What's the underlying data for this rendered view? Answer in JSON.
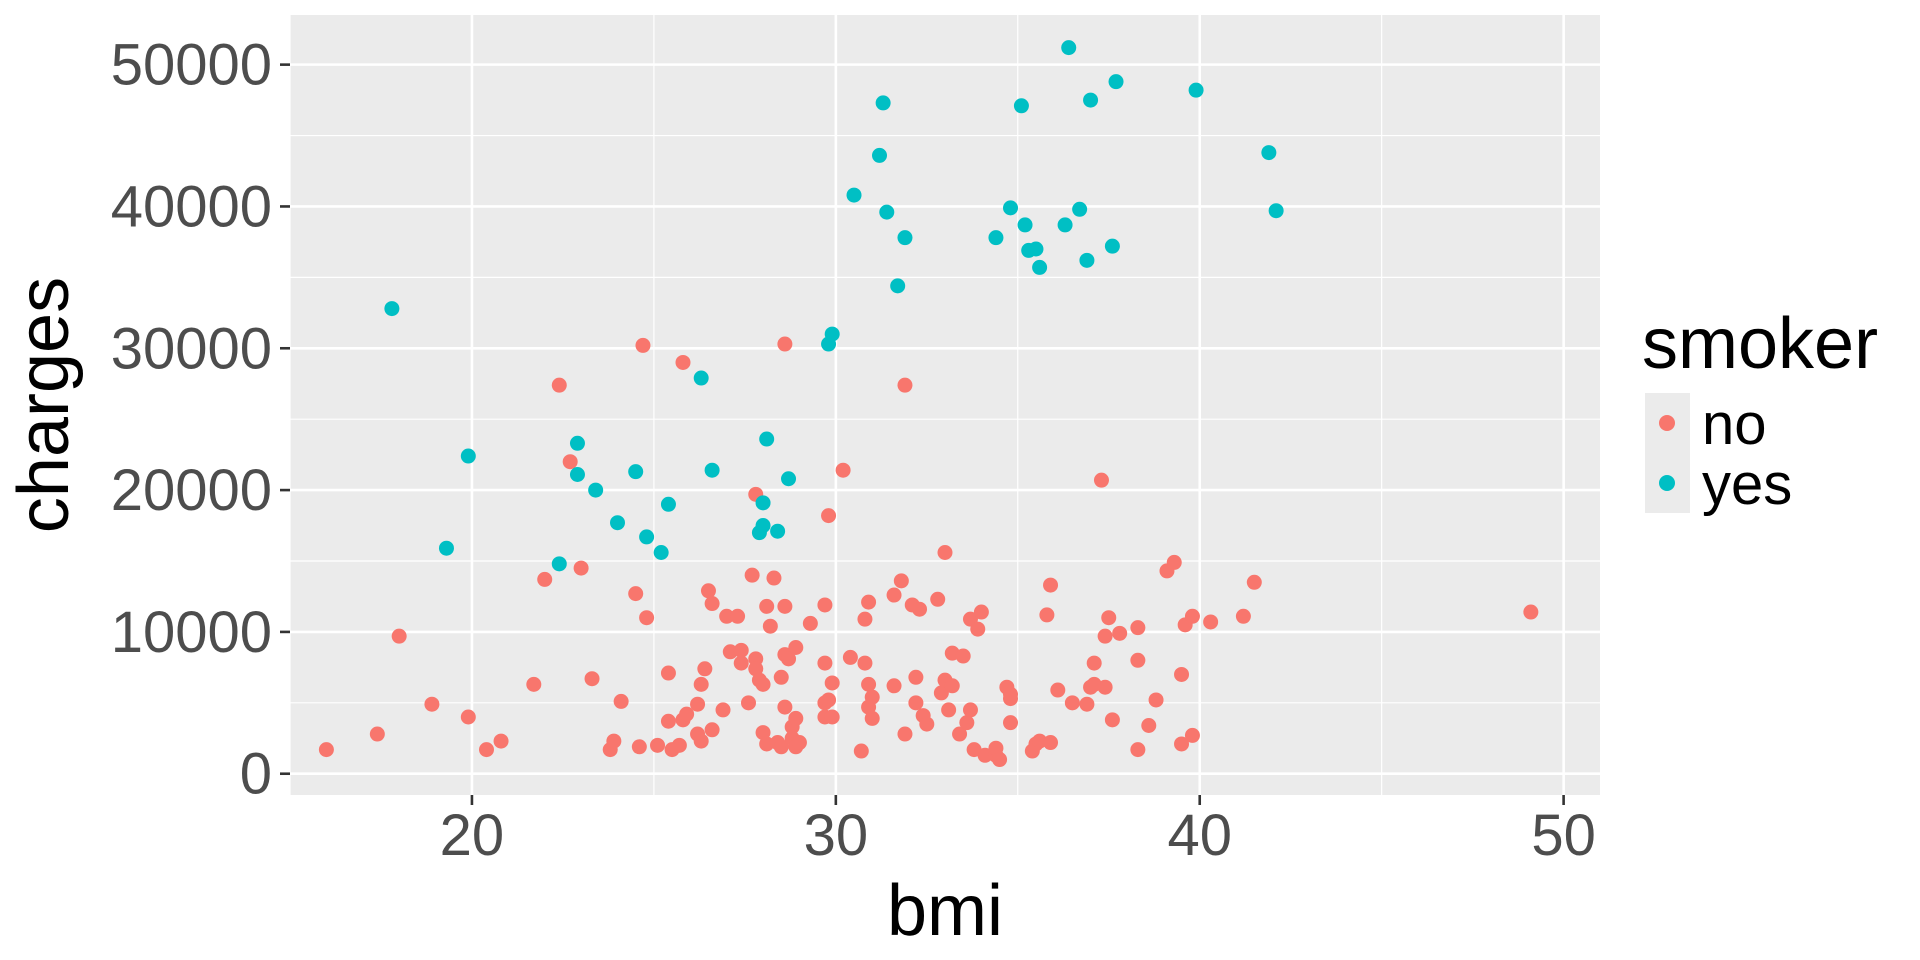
{
  "chart_data": {
    "type": "scatter",
    "title": "",
    "xlabel": "bmi",
    "ylabel": "charges",
    "xlim": [
      15,
      51
    ],
    "ylim": [
      -1500,
      53500
    ],
    "x_ticks": [
      20,
      30,
      40,
      50
    ],
    "x_ticks_text": [
      "20",
      "30",
      "40",
      "50"
    ],
    "y_ticks": [
      0,
      10000,
      20000,
      30000,
      40000,
      50000
    ],
    "y_ticks_text": [
      "0",
      "10000",
      "20000",
      "30000",
      "40000",
      "50000"
    ],
    "grid": true,
    "legend": {
      "title": "smoker",
      "placement": "right"
    },
    "series": [
      {
        "name": "no",
        "color": "#F8766D",
        "points": [
          [
            16.0,
            1700
          ],
          [
            17.4,
            2800
          ],
          [
            18.0,
            9700
          ],
          [
            18.9,
            4900
          ],
          [
            19.9,
            4000
          ],
          [
            20.4,
            1700
          ],
          [
            20.8,
            2300
          ],
          [
            21.7,
            6300
          ],
          [
            22.0,
            13700
          ],
          [
            22.4,
            27400
          ],
          [
            22.7,
            22000
          ],
          [
            23.0,
            14500
          ],
          [
            23.3,
            6700
          ],
          [
            23.8,
            1700
          ],
          [
            23.9,
            2300
          ],
          [
            24.1,
            5100
          ],
          [
            24.5,
            12700
          ],
          [
            24.6,
            1900
          ],
          [
            24.7,
            30200
          ],
          [
            24.8,
            11000
          ],
          [
            25.1,
            2000
          ],
          [
            25.4,
            7100
          ],
          [
            25.4,
            3700
          ],
          [
            25.5,
            1700
          ],
          [
            25.7,
            2000
          ],
          [
            25.8,
            29000
          ],
          [
            25.8,
            3800
          ],
          [
            25.9,
            4200
          ],
          [
            26.2,
            4900
          ],
          [
            26.2,
            2800
          ],
          [
            26.3,
            2300
          ],
          [
            26.3,
            6300
          ],
          [
            26.4,
            7400
          ],
          [
            26.5,
            12900
          ],
          [
            26.6,
            12000
          ],
          [
            26.6,
            3100
          ],
          [
            26.9,
            4500
          ],
          [
            27.0,
            11100
          ],
          [
            27.1,
            8600
          ],
          [
            27.3,
            11100
          ],
          [
            27.4,
            8700
          ],
          [
            27.4,
            7800
          ],
          [
            27.6,
            5000
          ],
          [
            27.7,
            14000
          ],
          [
            27.8,
            8100
          ],
          [
            27.8,
            7400
          ],
          [
            27.8,
            19700
          ],
          [
            27.9,
            6600
          ],
          [
            28.0,
            2900
          ],
          [
            28.0,
            6300
          ],
          [
            28.1,
            2100
          ],
          [
            28.1,
            11800
          ],
          [
            28.2,
            10400
          ],
          [
            28.3,
            13800
          ],
          [
            28.4,
            2200
          ],
          [
            28.5,
            1900
          ],
          [
            28.5,
            6800
          ],
          [
            28.6,
            4700
          ],
          [
            28.6,
            11800
          ],
          [
            28.6,
            8400
          ],
          [
            28.6,
            30300
          ],
          [
            28.7,
            8100
          ],
          [
            28.8,
            3300
          ],
          [
            28.8,
            2500
          ],
          [
            28.9,
            1900
          ],
          [
            28.9,
            3900
          ],
          [
            28.9,
            8900
          ],
          [
            29.0,
            2200
          ],
          [
            29.3,
            10600
          ],
          [
            29.7,
            4000
          ],
          [
            29.7,
            5000
          ],
          [
            29.7,
            11900
          ],
          [
            29.7,
            7800
          ],
          [
            29.8,
            18200
          ],
          [
            29.8,
            5200
          ],
          [
            29.9,
            6400
          ],
          [
            29.9,
            4000
          ],
          [
            30.2,
            21400
          ],
          [
            30.4,
            8200
          ],
          [
            30.7,
            1600
          ],
          [
            30.8,
            7800
          ],
          [
            30.8,
            10900
          ],
          [
            30.9,
            6300
          ],
          [
            30.9,
            12100
          ],
          [
            30.9,
            4700
          ],
          [
            31.0,
            3900
          ],
          [
            31.0,
            5400
          ],
          [
            31.6,
            12600
          ],
          [
            31.6,
            6200
          ],
          [
            31.8,
            13600
          ],
          [
            31.9,
            2800
          ],
          [
            31.9,
            27400
          ],
          [
            32.1,
            11900
          ],
          [
            32.2,
            5000
          ],
          [
            32.3,
            11600
          ],
          [
            32.2,
            6800
          ],
          [
            32.4,
            4100
          ],
          [
            32.5,
            3500
          ],
          [
            32.8,
            12300
          ],
          [
            32.9,
            5700
          ],
          [
            33.0,
            15600
          ],
          [
            33.0,
            6600
          ],
          [
            33.1,
            4500
          ],
          [
            33.2,
            6200
          ],
          [
            33.2,
            8500
          ],
          [
            33.4,
            2800
          ],
          [
            33.5,
            8300
          ],
          [
            33.6,
            3600
          ],
          [
            33.7,
            4500
          ],
          [
            33.7,
            10900
          ],
          [
            33.8,
            1700
          ],
          [
            33.9,
            10200
          ],
          [
            34.0,
            11400
          ],
          [
            34.1,
            1300
          ],
          [
            34.4,
            1300
          ],
          [
            34.4,
            1800
          ],
          [
            34.5,
            1000
          ],
          [
            34.7,
            6100
          ],
          [
            34.8,
            5600
          ],
          [
            34.8,
            5300
          ],
          [
            34.8,
            3600
          ],
          [
            35.4,
            1600
          ],
          [
            35.5,
            2100
          ],
          [
            35.6,
            2300
          ],
          [
            35.8,
            11200
          ],
          [
            35.9,
            13300
          ],
          [
            35.9,
            2200
          ],
          [
            36.1,
            5900
          ],
          [
            36.5,
            5000
          ],
          [
            36.9,
            4900
          ],
          [
            37.0,
            6100
          ],
          [
            37.1,
            7800
          ],
          [
            37.1,
            6300
          ],
          [
            37.3,
            20700
          ],
          [
            37.4,
            6100
          ],
          [
            37.4,
            9700
          ],
          [
            37.5,
            11000
          ],
          [
            37.6,
            3800
          ],
          [
            37.8,
            9900
          ],
          [
            38.3,
            1700
          ],
          [
            38.3,
            10300
          ],
          [
            38.3,
            8000
          ],
          [
            38.6,
            3400
          ],
          [
            38.8,
            5200
          ],
          [
            39.1,
            14300
          ],
          [
            39.3,
            14900
          ],
          [
            39.5,
            2100
          ],
          [
            39.5,
            7000
          ],
          [
            39.6,
            10500
          ],
          [
            39.8,
            11100
          ],
          [
            39.8,
            2700
          ],
          [
            40.3,
            10700
          ],
          [
            41.2,
            11100
          ],
          [
            41.5,
            13500
          ],
          [
            49.1,
            11400
          ]
        ]
      },
      {
        "name": "yes",
        "color": "#00BFC4",
        "points": [
          [
            17.8,
            32800
          ],
          [
            19.3,
            15900
          ],
          [
            19.9,
            22400
          ],
          [
            22.4,
            14800
          ],
          [
            22.9,
            23300
          ],
          [
            22.9,
            21100
          ],
          [
            23.4,
            20000
          ],
          [
            24.0,
            17700
          ],
          [
            24.5,
            21300
          ],
          [
            24.8,
            16700
          ],
          [
            25.2,
            15600
          ],
          [
            25.4,
            19000
          ],
          [
            26.3,
            27900
          ],
          [
            26.6,
            21400
          ],
          [
            27.9,
            17000
          ],
          [
            28.0,
            19100
          ],
          [
            28.0,
            17500
          ],
          [
            28.1,
            23600
          ],
          [
            28.4,
            17100
          ],
          [
            28.7,
            20800
          ],
          [
            29.8,
            30300
          ],
          [
            29.9,
            31000
          ],
          [
            30.5,
            40800
          ],
          [
            31.2,
            43600
          ],
          [
            31.3,
            47300
          ],
          [
            31.4,
            39600
          ],
          [
            31.7,
            34400
          ],
          [
            31.9,
            37800
          ],
          [
            34.4,
            37800
          ],
          [
            34.8,
            39900
          ],
          [
            35.1,
            47100
          ],
          [
            35.2,
            38700
          ],
          [
            35.3,
            36900
          ],
          [
            35.5,
            37000
          ],
          [
            35.6,
            35700
          ],
          [
            36.3,
            38700
          ],
          [
            36.4,
            51200
          ],
          [
            36.7,
            39800
          ],
          [
            36.9,
            36200
          ],
          [
            37.0,
            47500
          ],
          [
            37.6,
            37200
          ],
          [
            37.7,
            48800
          ],
          [
            39.9,
            48200
          ],
          [
            41.9,
            43800
          ],
          [
            42.1,
            39700
          ]
        ]
      }
    ]
  }
}
